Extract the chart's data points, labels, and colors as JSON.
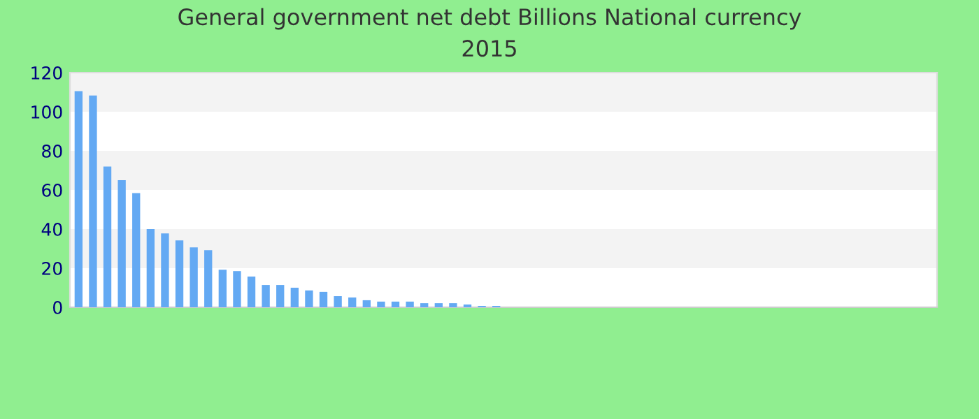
{
  "chart_data": {
    "type": "bar",
    "title": "General government net debt Billions National currency",
    "subtitle": "2015",
    "categories": [
      null,
      null,
      null,
      null,
      null,
      null,
      null,
      null,
      null,
      null,
      null,
      null,
      null,
      null,
      null,
      null,
      null,
      null,
      null,
      null,
      null,
      null,
      null,
      null,
      null,
      null,
      null,
      null,
      null,
      null,
      null,
      null,
      null,
      null,
      null,
      null,
      null,
      null,
      null,
      null,
      null,
      null,
      null,
      null,
      null,
      null,
      null,
      null,
      null,
      null,
      null,
      null,
      null,
      null,
      null,
      null,
      null,
      null,
      null,
      null
    ],
    "values": [
      110.5,
      108.3,
      72,
      65,
      58.4,
      40,
      37.8,
      34.2,
      30.6,
      29.2,
      19.2,
      18.5,
      15.7,
      11.4,
      11.4,
      10,
      8.6,
      7.9,
      5.7,
      5,
      3.6,
      2.9,
      2.9,
      2.9,
      2.1,
      2.1,
      2.1,
      1.4,
      0.7,
      0.7,
      null,
      null,
      null,
      null,
      null,
      null,
      null,
      null,
      null,
      null,
      null,
      null,
      null,
      null,
      null,
      null,
      null,
      null,
      null,
      null,
      null,
      null,
      null,
      null,
      null,
      null,
      null,
      null,
      null,
      null
    ],
    "color": "#63a9f3",
    "ylim": [
      0,
      120
    ],
    "yticks": [
      0,
      20,
      40,
      60,
      80,
      100,
      120
    ],
    "bands": [
      {
        "axis": "y",
        "from": 20,
        "to": 40,
        "color": "#f3f3f3"
      },
      {
        "axis": "y",
        "from": 60,
        "to": 80,
        "color": "#f3f3f3"
      },
      {
        "axis": "y",
        "from": 100,
        "to": 120,
        "color": "#f3f3f3"
      }
    ]
  }
}
